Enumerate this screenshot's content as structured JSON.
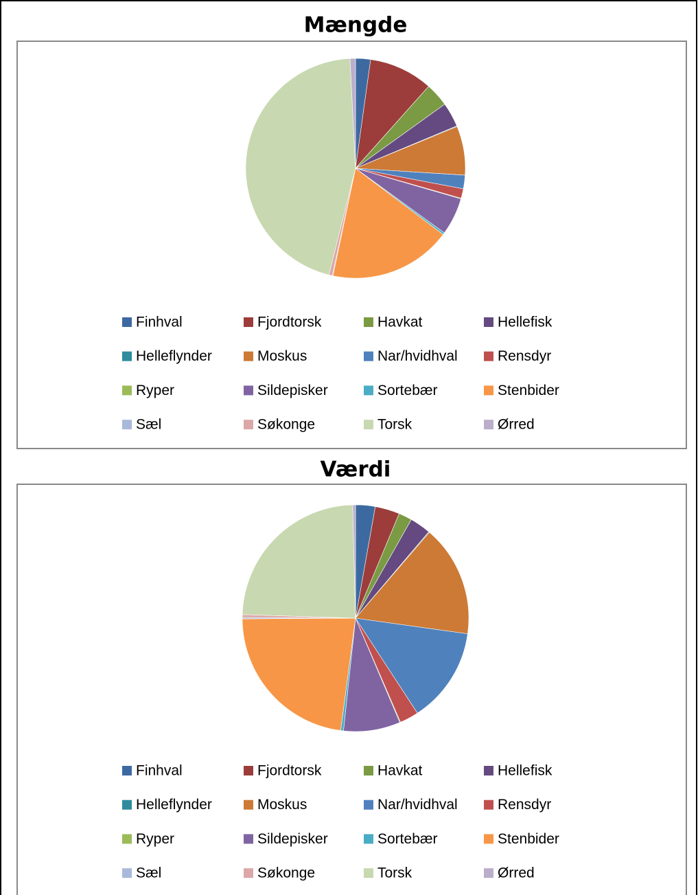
{
  "chart_data": [
    {
      "type": "pie",
      "title": "Mængde",
      "categories": [
        "Finhval",
        "Fjordtorsk",
        "Havkat",
        "Hellefisk",
        "Helleflynder",
        "Moskus",
        "Nar/hvidhval",
        "Rensdyr",
        "Ryper",
        "Sildepisker",
        "Sortebær",
        "Stenbider",
        "Sæl",
        "Søkonge",
        "Torsk",
        "Ørred"
      ],
      "values": [
        2.2,
        9.4,
        3.5,
        3.6,
        0.1,
        7.2,
        2,
        1.4,
        0.1,
        5.5,
        0.3,
        18,
        0.1,
        0.5,
        45.3,
        0.8
      ],
      "colors": [
        "#3C6AA0",
        "#9C3D3B",
        "#7A9A43",
        "#644A80",
        "#2E8C9C",
        "#CC7A36",
        "#4F81BD",
        "#C0504D",
        "#9BBB59",
        "#8064A2",
        "#4BACC6",
        "#F79646",
        "#A9B9DA",
        "#DCA8A7",
        "#C8D8B0",
        "#BBAECB"
      ]
    },
    {
      "type": "pie",
      "title": "Værdi",
      "categories": [
        "Finhval",
        "Fjordtorsk",
        "Havkat",
        "Hellefisk",
        "Helleflynder",
        "Moskus",
        "Nar/hvidhval",
        "Rensdyr",
        "Ryper",
        "Sildepisker",
        "Sortebær",
        "Stenbider",
        "Sæl",
        "Søkonge",
        "Torsk",
        "Ørred"
      ],
      "values": [
        2.8,
        3.5,
        1.9,
        3,
        0.1,
        15.9,
        13.6,
        2.7,
        0.1,
        8.1,
        0.4,
        22.8,
        0.2,
        0.4,
        24.1,
        0.4
      ],
      "colors": [
        "#3C6AA0",
        "#9C3D3B",
        "#7A9A43",
        "#644A80",
        "#2E8C9C",
        "#CC7A36",
        "#4F81BD",
        "#C0504D",
        "#9BBB59",
        "#8064A2",
        "#4BACC6",
        "#F79646",
        "#A9B9DA",
        "#DCA8A7",
        "#C8D8B0",
        "#BBAECB"
      ]
    }
  ]
}
